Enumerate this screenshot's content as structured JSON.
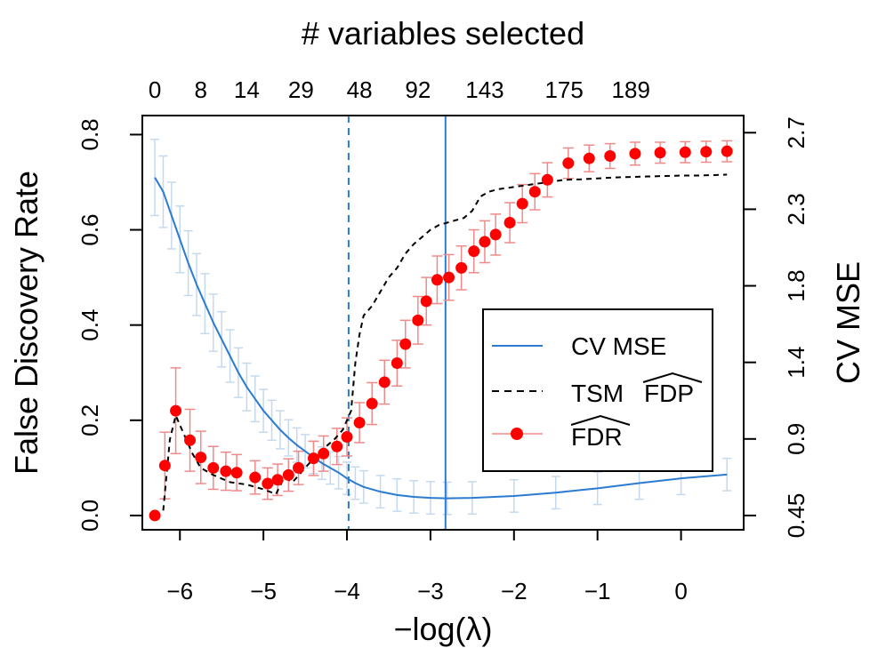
{
  "chart_data": {
    "type": "line",
    "xlabel": "−log(λ)",
    "ylabel": "False Discovery Rate",
    "y2label": "CV MSE",
    "toplabel": "# variables selected",
    "xlim": [
      -6.45,
      0.75
    ],
    "ylim": [
      -0.03,
      0.84
    ],
    "x_ticks": [
      "−6",
      "−5",
      "−4",
      "−3",
      "−2",
      "−1",
      "0"
    ],
    "x_tick_values": [
      -6,
      -5,
      -4,
      -3,
      -2,
      -1,
      0
    ],
    "y_ticks": [
      "0.0",
      "0.2",
      "0.4",
      "0.6",
      "0.8"
    ],
    "y_tick_values": [
      0.0,
      0.2,
      0.4,
      0.6,
      0.8
    ],
    "y2_ticks": [
      "0.45",
      "0.9",
      "1.4",
      "1.8",
      "2.3",
      "2.7"
    ],
    "top_ticks": [
      "0",
      "8",
      "14",
      "29",
      "48",
      "92",
      "143",
      "175",
      "189"
    ],
    "top_tick_values": [
      -6.3,
      -5.75,
      -5.2,
      -4.55,
      -3.85,
      -3.15,
      -2.35,
      -1.4,
      -0.6
    ],
    "vlines": [
      {
        "x": -3.98,
        "style": "dashed",
        "color": "#2b7bd1"
      },
      {
        "x": -2.82,
        "style": "solid",
        "color": "#2b7bd1"
      }
    ],
    "legend": {
      "placement": "bottom-right",
      "entries": [
        {
          "label": "CV MSE"
        },
        {
          "label": "TSM",
          "label_hat": "FDP"
        },
        {
          "label_hat": "FDR"
        }
      ]
    },
    "series": [
      {
        "key": "cv_mse",
        "color": "#2b7bd1",
        "x": [
          -6.3,
          -6.2,
          -6.1,
          -6.0,
          -5.9,
          -5.8,
          -5.7,
          -5.6,
          -5.5,
          -5.4,
          -5.3,
          -5.2,
          -5.1,
          -5.0,
          -4.9,
          -4.8,
          -4.7,
          -4.6,
          -4.5,
          -4.4,
          -4.3,
          -4.2,
          -4.1,
          -4.0,
          -3.9,
          -3.8,
          -3.6,
          -3.4,
          -3.2,
          -3.0,
          -2.8,
          -2.5,
          -2.0,
          -1.5,
          -1.0,
          -0.5,
          0.0,
          0.55
        ],
        "y": [
          0.71,
          0.68,
          0.63,
          0.58,
          0.53,
          0.485,
          0.445,
          0.405,
          0.37,
          0.335,
          0.3,
          0.27,
          0.245,
          0.22,
          0.2,
          0.18,
          0.163,
          0.148,
          0.135,
          0.122,
          0.11,
          0.1,
          0.09,
          0.078,
          0.068,
          0.06,
          0.05,
          0.043,
          0.039,
          0.037,
          0.036,
          0.037,
          0.041,
          0.048,
          0.057,
          0.068,
          0.078,
          0.086
        ],
        "err": [
          0.08,
          0.075,
          0.07,
          0.07,
          0.068,
          0.065,
          0.063,
          0.06,
          0.058,
          0.055,
          0.052,
          0.05,
          0.048,
          0.045,
          0.042,
          0.04,
          0.038,
          0.036,
          0.035,
          0.034,
          0.034,
          0.034,
          0.034,
          0.034,
          0.034,
          0.034,
          0.034,
          0.034,
          0.034,
          0.034,
          0.034,
          0.034,
          0.034,
          0.034,
          0.034,
          0.034,
          0.034,
          0.034
        ]
      },
      {
        "key": "tsm_fdp",
        "color": "#000000",
        "x": [
          -6.3,
          -6.2,
          -6.12,
          -6.05,
          -5.95,
          -5.85,
          -5.75,
          -5.6,
          -5.4,
          -5.2,
          -5.0,
          -4.85,
          -4.75,
          -4.65,
          -4.55,
          -4.45,
          -4.35,
          -4.25,
          -4.15,
          -4.05,
          -3.95,
          -3.9,
          -3.85,
          -3.8,
          -3.7,
          -3.6,
          -3.5,
          -3.4,
          -3.3,
          -3.2,
          -3.1,
          -3.0,
          -2.9,
          -2.8,
          -2.7,
          -2.6,
          -2.5,
          -2.4,
          -2.3,
          -2.2,
          -2.0,
          -1.8,
          -1.6,
          -1.4,
          -1.2,
          -1.0,
          -0.8,
          -0.6,
          -0.4,
          -0.2,
          0.0,
          0.2,
          0.4,
          0.55
        ],
        "y": [
          0.0,
          0.01,
          0.16,
          0.21,
          0.17,
          0.13,
          0.1,
          0.085,
          0.07,
          0.065,
          0.055,
          0.045,
          0.08,
          0.07,
          0.09,
          0.11,
          0.12,
          0.145,
          0.16,
          0.18,
          0.22,
          0.32,
          0.38,
          0.42,
          0.44,
          0.47,
          0.5,
          0.52,
          0.55,
          0.57,
          0.585,
          0.6,
          0.61,
          0.615,
          0.62,
          0.625,
          0.64,
          0.67,
          0.68,
          0.685,
          0.69,
          0.695,
          0.7,
          0.705,
          0.706,
          0.708,
          0.71,
          0.711,
          0.712,
          0.713,
          0.714,
          0.714,
          0.715,
          0.716
        ]
      },
      {
        "key": "fdr",
        "color": "#ff0000",
        "errcolor": "#f08a8a",
        "x": [
          -6.3,
          -6.18,
          -6.05,
          -5.88,
          -5.75,
          -5.6,
          -5.45,
          -5.32,
          -5.1,
          -4.95,
          -4.83,
          -4.7,
          -4.58,
          -4.4,
          -4.28,
          -4.12,
          -4.0,
          -3.85,
          -3.7,
          -3.55,
          -3.4,
          -3.3,
          -3.15,
          -3.05,
          -2.92,
          -2.78,
          -2.63,
          -2.48,
          -2.35,
          -2.22,
          -2.05,
          -1.9,
          -1.75,
          -1.6,
          -1.35,
          -1.1,
          -0.85,
          -0.55,
          -0.25,
          0.05,
          0.3,
          0.55
        ],
        "y": [
          0.0,
          0.105,
          0.22,
          0.158,
          0.122,
          0.1,
          0.093,
          0.09,
          0.08,
          0.067,
          0.075,
          0.085,
          0.1,
          0.12,
          0.13,
          0.145,
          0.165,
          0.195,
          0.235,
          0.28,
          0.32,
          0.36,
          0.41,
          0.45,
          0.495,
          0.5,
          0.52,
          0.555,
          0.575,
          0.59,
          0.615,
          0.655,
          0.68,
          0.705,
          0.74,
          0.75,
          0.755,
          0.76,
          0.762,
          0.763,
          0.764,
          0.765
        ],
        "err": [
          0.0,
          0.07,
          0.09,
          0.065,
          0.055,
          0.045,
          0.04,
          0.038,
          0.035,
          0.033,
          0.033,
          0.034,
          0.035,
          0.036,
          0.037,
          0.038,
          0.04,
          0.042,
          0.044,
          0.046,
          0.048,
          0.05,
          0.05,
          0.05,
          0.05,
          0.048,
          0.046,
          0.045,
          0.044,
          0.043,
          0.042,
          0.04,
          0.038,
          0.036,
          0.032,
          0.028,
          0.026,
          0.024,
          0.022,
          0.022,
          0.022,
          0.022
        ]
      }
    ]
  }
}
